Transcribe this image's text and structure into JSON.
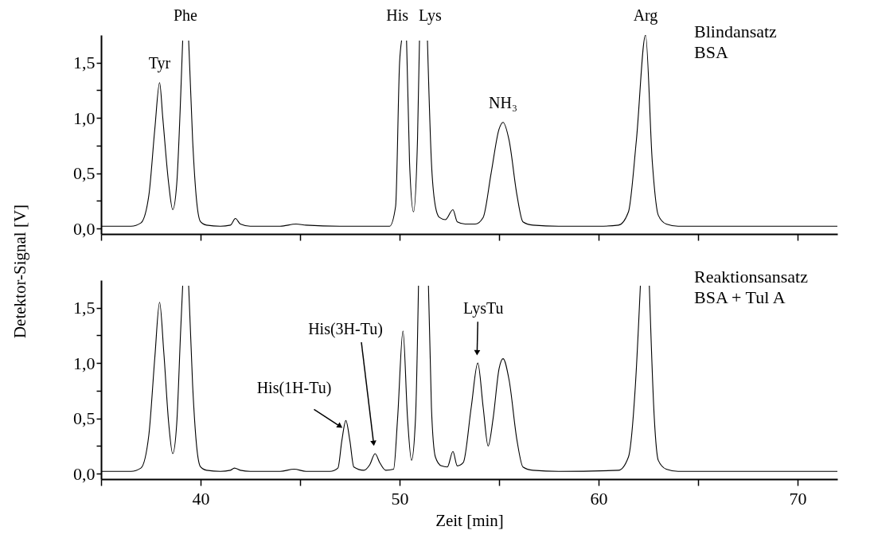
{
  "chart_data": [
    {
      "type": "line",
      "ylabel": "Detektor-Signal [V]",
      "xlim": [
        35,
        72
      ],
      "ylim": [
        -0.05,
        1.75
      ],
      "xticks": [
        {
          "value": 35,
          "label": null
        },
        40,
        {
          "value": 45,
          "label": null
        },
        50,
        {
          "value": 55,
          "label": null
        },
        60,
        {
          "value": 65,
          "label": null
        },
        70
      ],
      "yticks": [
        {
          "value": 0,
          "label": "0,0"
        },
        {
          "value": 0.25,
          "label": null
        },
        {
          "value": 0.5,
          "label": "0,5"
        },
        {
          "value": 0.75,
          "label": null
        },
        {
          "value": 1,
          "label": "1,0"
        },
        {
          "value": 1.25,
          "label": null
        },
        {
          "value": 1.5,
          "label": "1,5"
        }
      ],
      "tick_labels": "y",
      "grid": false,
      "marker": "none",
      "line_style": "solid",
      "series": [
        {
          "color": "#000000",
          "x": [
            35,
            36.5,
            37.0,
            37.4,
            37.7,
            37.94,
            38.1,
            38.4,
            38.6,
            38.8,
            39.0,
            39.1,
            39.25,
            39.4,
            39.6,
            39.8,
            40.0,
            40.3,
            41.0,
            41.5,
            41.75,
            42.0,
            42.5,
            44.0,
            44.8,
            45.3,
            47,
            48,
            49,
            49.5,
            49.8,
            50.0,
            50.1,
            50.22,
            50.35,
            50.5,
            50.7,
            50.9,
            51.0,
            51.2,
            51.4,
            51.6,
            51.8,
            52.0,
            52.3,
            52.68,
            52.9,
            53.3,
            53.8,
            54.2,
            54.6,
            55.0,
            55.2,
            55.5,
            55.9,
            56.2,
            56.7,
            58,
            60,
            61.0,
            61.5,
            61.9,
            62.36,
            62.7,
            63.0,
            63.4,
            64,
            72
          ],
          "values": [
            0.02,
            0.02,
            0.05,
            0.3,
            0.9,
            1.32,
            1.0,
            0.4,
            0.17,
            0.4,
            1.2,
            1.7,
            null,
            1.7,
            0.8,
            0.25,
            0.06,
            0.03,
            0.02,
            0.03,
            0.09,
            0.04,
            0.02,
            0.02,
            0.04,
            0.03,
            0.02,
            0.02,
            0.02,
            0.02,
            0.2,
            1.5,
            1.7,
            null,
            1.7,
            0.6,
            0.15,
            0.8,
            1.7,
            null,
            1.7,
            0.6,
            0.2,
            0.1,
            0.08,
            0.17,
            0.06,
            0.04,
            0.04,
            0.1,
            0.5,
            0.9,
            0.96,
            0.8,
            0.3,
            0.06,
            0.03,
            0.02,
            0.02,
            0.03,
            0.15,
            0.8,
            1.75,
            0.6,
            0.12,
            0.04,
            0.02,
            0.02
          ]
        }
      ],
      "annotations": [
        {
          "text": "Tyr",
          "x": 37.94,
          "y": 1.32
        },
        "Phe",
        "His",
        "Lys",
        {
          "text": "NH₃",
          "x": 55.2,
          "y": 0.96
        },
        {
          "text": "Arg",
          "x": 62.36,
          "y": 1.75
        },
        "Blindansatz\nBSA"
      ]
    },
    {
      "type": "line",
      "xlabel": "Zeit [min]",
      "xlim": [
        35,
        72
      ],
      "ylim": [
        -0.05,
        1.75
      ],
      "xticks": [
        {
          "value": 35,
          "label": null
        },
        40,
        {
          "value": 45,
          "label": null
        },
        50,
        {
          "value": 55,
          "label": null
        },
        60,
        {
          "value": 65,
          "label": null
        },
        70
      ],
      "yticks": [
        {
          "value": 0,
          "label": "0,0"
        },
        {
          "value": 0.25,
          "label": null
        },
        {
          "value": 0.5,
          "label": "0,5"
        },
        {
          "value": 0.75,
          "label": null
        },
        {
          "value": 1,
          "label": "1,0"
        },
        {
          "value": 1.25,
          "label": null
        },
        {
          "value": 1.5,
          "label": "1,5"
        }
      ],
      "grid": false,
      "marker": "none",
      "line_style": "solid",
      "series": [
        {
          "color": "#000000",
          "x": [
            35,
            36.5,
            37.0,
            37.4,
            37.7,
            37.94,
            38.15,
            38.4,
            38.6,
            38.8,
            39.0,
            39.1,
            39.25,
            39.4,
            39.6,
            39.8,
            40.0,
            40.3,
            41.0,
            41.5,
            41.7,
            42.0,
            42.5,
            44.0,
            44.7,
            45.3,
            46.5,
            46.9,
            47.1,
            47.3,
            47.5,
            47.7,
            48.2,
            48.5,
            48.77,
            49.0,
            49.3,
            49.7,
            49.9,
            50.17,
            50.4,
            50.6,
            50.8,
            50.95,
            51.2,
            51.45,
            51.6,
            51.8,
            52.1,
            52.4,
            52.68,
            52.9,
            53.2,
            53.6,
            53.93,
            54.2,
            54.45,
            54.7,
            55.0,
            55.2,
            55.5,
            55.9,
            56.2,
            56.7,
            58,
            61,
            61.5,
            61.85,
            62.1,
            62.32,
            62.55,
            62.8,
            63.0,
            63.4,
            64,
            72
          ],
          "values": [
            0.02,
            0.02,
            0.05,
            0.35,
            1.05,
            1.55,
            1.1,
            0.45,
            0.18,
            0.45,
            1.3,
            1.7,
            null,
            1.7,
            0.8,
            0.25,
            0.06,
            0.03,
            0.02,
            0.03,
            0.05,
            0.03,
            0.02,
            0.02,
            0.04,
            0.02,
            0.02,
            0.05,
            0.3,
            0.48,
            0.3,
            0.06,
            0.03,
            0.08,
            0.18,
            0.1,
            0.03,
            0.04,
            0.5,
            1.29,
            0.5,
            0.12,
            0.5,
            1.7,
            null,
            1.7,
            0.6,
            0.15,
            0.07,
            0.06,
            0.2,
            0.07,
            0.1,
            0.6,
            1.0,
            0.6,
            0.25,
            0.5,
            0.95,
            1.04,
            0.85,
            0.3,
            0.06,
            0.03,
            0.02,
            0.03,
            0.15,
            0.8,
            1.7,
            null,
            1.7,
            0.5,
            0.12,
            0.04,
            0.02,
            0.02
          ]
        }
      ],
      "annotations": [
        {
          "text": "His(1H-Tu)",
          "x": 47.3,
          "y": 0.48
        },
        "His(3H-Tu)",
        {
          "text": "LysTu",
          "x": 53.93,
          "y": 1.0
        },
        "Reaktionsansatz\nBSA + Tul A"
      ]
    }
  ]
}
